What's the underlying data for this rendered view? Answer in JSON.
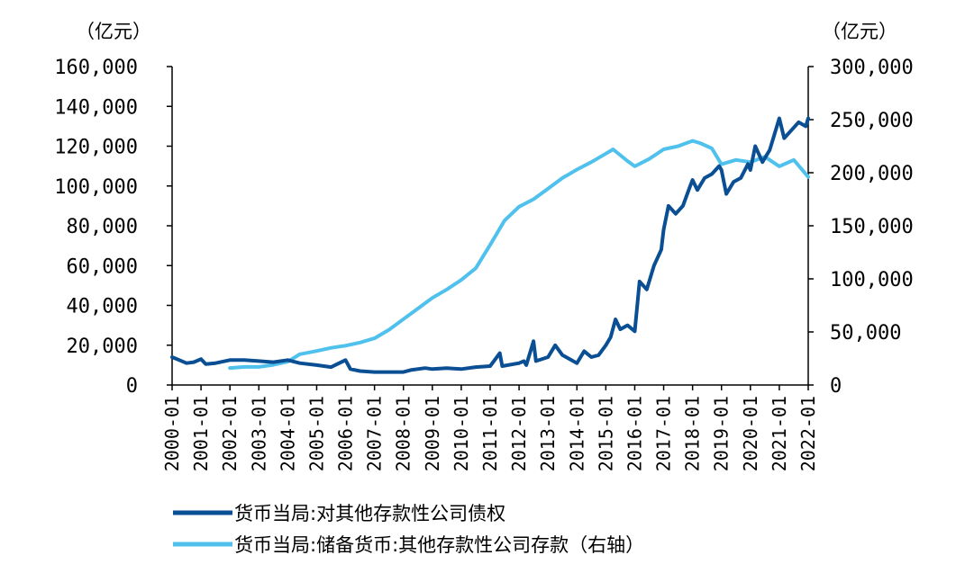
{
  "chart_data": {
    "type": "line",
    "left_unit": "（亿元）",
    "right_unit": "（亿元）",
    "y_left": {
      "min": 0,
      "max": 160000,
      "ticks": [
        "0",
        "20,000",
        "40,000",
        "60,000",
        "80,000",
        "100,000",
        "120,000",
        "140,000",
        "160,000"
      ]
    },
    "y_right": {
      "min": 0,
      "max": 300000,
      "ticks": [
        "0",
        "50,000",
        "100,000",
        "150,000",
        "200,000",
        "250,000",
        "300,000"
      ]
    },
    "x_ticks": [
      "2000-01",
      "2001-01",
      "2002-01",
      "2003-01",
      "2004-01",
      "2005-01",
      "2006-01",
      "2007-01",
      "2008-01",
      "2009-01",
      "2010-01",
      "2011-01",
      "2012-01",
      "2013-01",
      "2014-01",
      "2015-01",
      "2016-01",
      "2017-01",
      "2018-01",
      "2019-01",
      "2020-01",
      "2021-01",
      "2022-01"
    ],
    "x_range": [
      "2000-01",
      "2022-01"
    ],
    "grid": false,
    "legend_position": "bottom",
    "series": [
      {
        "name": "货币当局:对其他存款性公司债权",
        "axis": "left",
        "color": "#0a4f93",
        "points": [
          [
            "2000-01",
            14000
          ],
          [
            "2000-04",
            12500
          ],
          [
            "2000-07",
            11000
          ],
          [
            "2000-10",
            11500
          ],
          [
            "2001-01",
            13000
          ],
          [
            "2001-03",
            10500
          ],
          [
            "2001-07",
            11000
          ],
          [
            "2002-01",
            12500
          ],
          [
            "2002-07",
            12500
          ],
          [
            "2003-01",
            12000
          ],
          [
            "2003-07",
            11500
          ],
          [
            "2004-01",
            12500
          ],
          [
            "2004-06",
            11000
          ],
          [
            "2005-01",
            10000
          ],
          [
            "2005-07",
            9000
          ],
          [
            "2006-01",
            12500
          ],
          [
            "2006-03",
            8000
          ],
          [
            "2006-07",
            7000
          ],
          [
            "2007-01",
            6500
          ],
          [
            "2007-07",
            6500
          ],
          [
            "2008-01",
            6500
          ],
          [
            "2008-04",
            7500
          ],
          [
            "2008-10",
            8500
          ],
          [
            "2009-01",
            8000
          ],
          [
            "2009-07",
            8500
          ],
          [
            "2010-01",
            8000
          ],
          [
            "2010-07",
            9000
          ],
          [
            "2011-01",
            9500
          ],
          [
            "2011-05",
            16000
          ],
          [
            "2011-06",
            9500
          ],
          [
            "2012-01",
            11000
          ],
          [
            "2012-03",
            12000
          ],
          [
            "2012-04",
            10000
          ],
          [
            "2012-07",
            22000
          ],
          [
            "2012-08",
            12000
          ],
          [
            "2013-01",
            14000
          ],
          [
            "2013-04",
            20000
          ],
          [
            "2013-07",
            15000
          ],
          [
            "2014-01",
            11000
          ],
          [
            "2014-04",
            17000
          ],
          [
            "2014-07",
            14000
          ],
          [
            "2014-10",
            15000
          ],
          [
            "2015-01",
            20000
          ],
          [
            "2015-03",
            24000
          ],
          [
            "2015-05",
            33000
          ],
          [
            "2015-07",
            28000
          ],
          [
            "2015-10",
            30000
          ],
          [
            "2016-01",
            27000
          ],
          [
            "2016-03",
            52000
          ],
          [
            "2016-06",
            48000
          ],
          [
            "2016-09",
            60000
          ],
          [
            "2016-12",
            68000
          ],
          [
            "2017-01",
            78000
          ],
          [
            "2017-03",
            90000
          ],
          [
            "2017-06",
            86000
          ],
          [
            "2017-09",
            90000
          ],
          [
            "2017-12",
            100000
          ],
          [
            "2018-01",
            103000
          ],
          [
            "2018-03",
            98000
          ],
          [
            "2018-06",
            104000
          ],
          [
            "2018-09",
            106000
          ],
          [
            "2018-12",
            110000
          ],
          [
            "2019-01",
            108000
          ],
          [
            "2019-03",
            96000
          ],
          [
            "2019-06",
            102000
          ],
          [
            "2019-09",
            104000
          ],
          [
            "2019-12",
            111000
          ],
          [
            "2020-01",
            108000
          ],
          [
            "2020-03",
            120000
          ],
          [
            "2020-06",
            112000
          ],
          [
            "2020-09",
            118000
          ],
          [
            "2020-12",
            130000
          ],
          [
            "2021-01",
            134000
          ],
          [
            "2021-03",
            124000
          ],
          [
            "2021-06",
            128000
          ],
          [
            "2021-09",
            132000
          ],
          [
            "2021-12",
            130000
          ],
          [
            "2022-01",
            134000
          ]
        ]
      },
      {
        "name": "货币当局:储备货币:其他存款性公司存款（右轴）",
        "axis": "right",
        "color": "#4fc1ec",
        "points": [
          [
            "2002-01",
            16000
          ],
          [
            "2002-07",
            17000
          ],
          [
            "2003-01",
            17000
          ],
          [
            "2003-07",
            19000
          ],
          [
            "2004-01",
            22000
          ],
          [
            "2004-06",
            29000
          ],
          [
            "2005-01",
            32000
          ],
          [
            "2005-07",
            35000
          ],
          [
            "2006-01",
            37000
          ],
          [
            "2006-07",
            40000
          ],
          [
            "2007-01",
            44000
          ],
          [
            "2007-07",
            52000
          ],
          [
            "2008-01",
            62000
          ],
          [
            "2008-07",
            72000
          ],
          [
            "2009-01",
            82000
          ],
          [
            "2009-07",
            90000
          ],
          [
            "2010-01",
            99000
          ],
          [
            "2010-07",
            110000
          ],
          [
            "2011-01",
            132000
          ],
          [
            "2011-07",
            155000
          ],
          [
            "2012-01",
            168000
          ],
          [
            "2012-07",
            175000
          ],
          [
            "2013-01",
            185000
          ],
          [
            "2013-07",
            195000
          ],
          [
            "2014-01",
            203000
          ],
          [
            "2014-07",
            210000
          ],
          [
            "2015-01",
            218000
          ],
          [
            "2015-04",
            222000
          ],
          [
            "2015-10",
            211000
          ],
          [
            "2016-01",
            206000
          ],
          [
            "2016-07",
            213000
          ],
          [
            "2017-01",
            222000
          ],
          [
            "2017-07",
            225000
          ],
          [
            "2018-01",
            230000
          ],
          [
            "2018-04",
            228000
          ],
          [
            "2018-09",
            223000
          ],
          [
            "2019-01",
            208000
          ],
          [
            "2019-07",
            212000
          ],
          [
            "2020-01",
            210000
          ],
          [
            "2020-07",
            215000
          ],
          [
            "2021-01",
            206000
          ],
          [
            "2021-07",
            212000
          ],
          [
            "2022-01",
            196000
          ]
        ]
      }
    ]
  }
}
